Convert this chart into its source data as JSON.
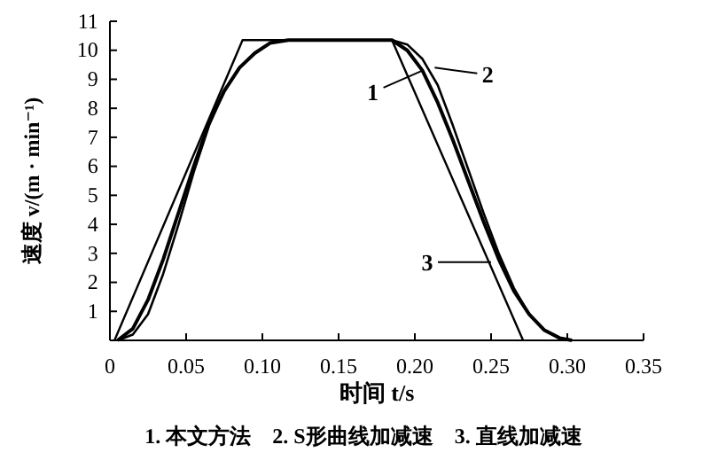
{
  "chart_data": {
    "type": "line",
    "xlabel": "时间 t/s",
    "ylabel": "速度 v/(m · min⁻¹)",
    "xlim": [
      0,
      0.35
    ],
    "ylim": [
      0,
      11
    ],
    "xticks": [
      0,
      0.05,
      {
        "value": 0.1,
        "label": "0.10"
      },
      0.15,
      {
        "value": 0.2,
        "label": "0.20"
      },
      0.25,
      {
        "value": 0.3,
        "label": "0.30"
      },
      0.35
    ],
    "yticks": [
      {
        "value": 0,
        "label": null
      },
      1,
      2,
      3,
      4,
      5,
      6,
      7,
      8,
      9,
      10,
      11
    ],
    "grid": false,
    "marker": "none",
    "line_style": "solid",
    "series": [
      {
        "color": "#000000",
        "x": [
          0.005,
          0.015,
          0.025,
          0.035,
          0.045,
          0.055,
          0.065,
          0.075,
          0.085,
          0.095,
          0.105,
          0.117,
          0.185,
          0.195,
          0.205,
          0.215,
          0.225,
          0.235,
          0.245,
          0.255,
          0.265,
          0.275,
          0.285,
          0.295,
          0.303
        ],
        "values": [
          0,
          0.4,
          1.4,
          2.8,
          4.4,
          6.0,
          7.5,
          8.6,
          9.4,
          9.9,
          10.25,
          10.35,
          10.35,
          10.0,
          9.3,
          8.2,
          6.9,
          5.5,
          4.1,
          2.8,
          1.7,
          0.9,
          0.35,
          0.08,
          0
        ]
      },
      {
        "color": "#000000",
        "x": [
          0.005,
          0.015,
          0.025,
          0.035,
          0.045,
          0.055,
          0.065,
          0.075,
          0.085,
          0.095,
          0.105,
          0.117,
          0.185,
          0.195,
          0.205,
          0.215,
          0.225,
          0.235,
          0.245,
          0.255,
          0.265,
          0.275,
          0.285,
          0.295,
          0.303
        ],
        "values": [
          0,
          0.2,
          0.9,
          2.3,
          4.0,
          5.8,
          7.4,
          8.6,
          9.4,
          9.9,
          10.25,
          10.35,
          10.35,
          10.2,
          9.7,
          8.8,
          7.4,
          5.9,
          4.4,
          3.0,
          1.8,
          0.9,
          0.35,
          0.08,
          0
        ]
      },
      {
        "color": "#000000",
        "x": [
          0.003,
          0.087,
          0.185,
          0.271
        ],
        "values": [
          0,
          10.35,
          10.35,
          0
        ]
      }
    ],
    "annotations": [
      {
        "text": "1",
        "x": 0.205,
        "y": 9.3
      },
      {
        "text": "2",
        "x": 0.213,
        "y": 9.4
      },
      {
        "text": "3",
        "x": 0.25,
        "y": 2.7
      },
      "1. 本文方法　2. S形曲线加减速　3. 直线加减速"
    ]
  }
}
